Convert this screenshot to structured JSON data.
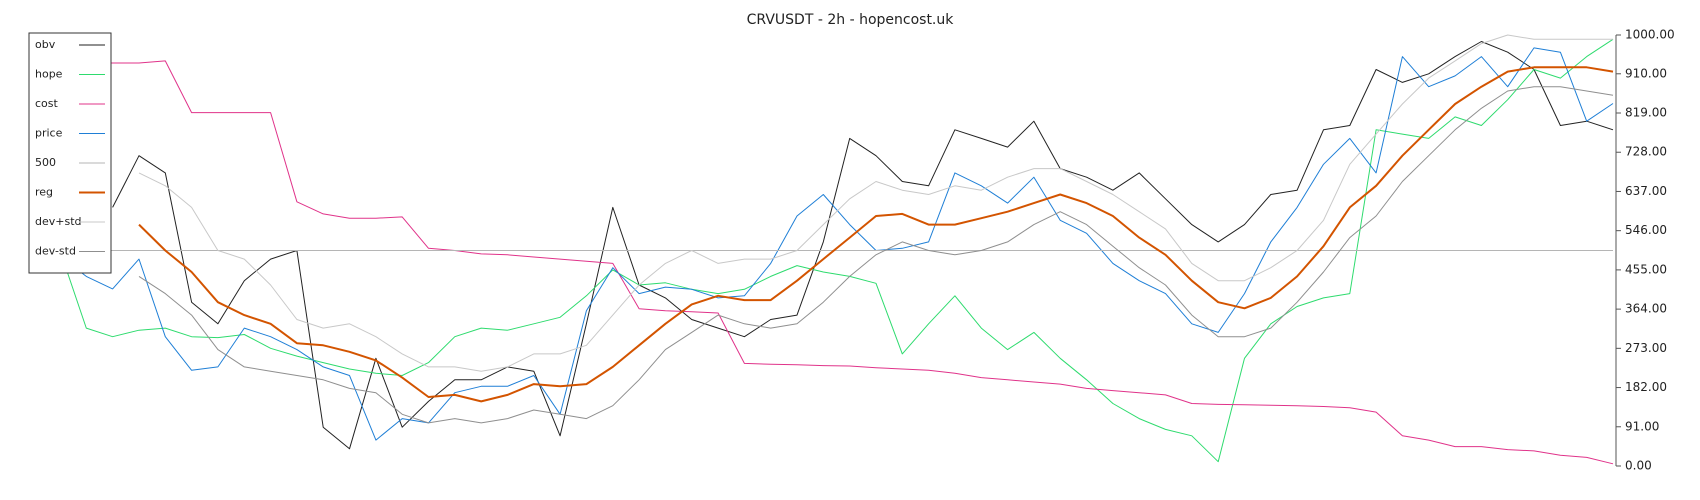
{
  "chart_data": {
    "type": "line",
    "title": "CRVUSDT - 2h - hopencost.uk",
    "ylim": [
      0,
      1000
    ],
    "yticks": [
      {
        "value": 0,
        "label": "0.00"
      },
      {
        "value": 91,
        "label": "91.00"
      },
      {
        "value": 182,
        "label": "182.00"
      },
      {
        "value": 273,
        "label": "273.00"
      },
      {
        "value": 364,
        "label": "364.00"
      },
      {
        "value": 455,
        "label": "455.00"
      },
      {
        "value": 546,
        "label": "546.00"
      },
      {
        "value": 637,
        "label": "637.00"
      },
      {
        "value": 728,
        "label": "728.00"
      },
      {
        "value": 819,
        "label": "819.00"
      },
      {
        "value": 910,
        "label": "910.00"
      },
      {
        "value": 1000,
        "label": "1000.00"
      }
    ],
    "y_axis_side": "right",
    "legend": "upper left",
    "series": [
      {
        "name": "obv",
        "color": "#222222",
        "width": 1,
        "values": [
          null,
          null,
          600,
          720,
          680,
          380,
          330,
          430,
          480,
          500,
          90,
          40,
          250,
          90,
          150,
          200,
          200,
          230,
          220,
          70,
          330,
          600,
          420,
          390,
          340,
          320,
          300,
          340,
          350,
          520,
          760,
          720,
          660,
          650,
          780,
          760,
          740,
          800,
          690,
          670,
          640,
          680,
          620,
          560,
          520,
          560,
          630,
          640,
          780,
          790,
          920,
          890,
          910,
          950,
          985,
          960,
          920,
          790,
          800,
          780
        ]
      },
      {
        "name": "hope",
        "color": "#2edb6e",
        "width": 1,
        "values": [
          500,
          320,
          300,
          315,
          320,
          300,
          298,
          305,
          273,
          255,
          240,
          225,
          215,
          210,
          240,
          300,
          320,
          315,
          330,
          345,
          395,
          455,
          420,
          425,
          410,
          400,
          410,
          440,
          465,
          450,
          440,
          424,
          260,
          330,
          395,
          320,
          270,
          310,
          250,
          200,
          145,
          110,
          85,
          70,
          10,
          250,
          330,
          370,
          390,
          400,
          780,
          770,
          760,
          810,
          790,
          850,
          920,
          900,
          950,
          990
        ]
      },
      {
        "name": "cost",
        "color": "#e0338a",
        "width": 1,
        "values": [
          935,
          935,
          935,
          935,
          940,
          820,
          820,
          820,
          820,
          613,
          585,
          575,
          575,
          578,
          505,
          500,
          492,
          490,
          485,
          480,
          475,
          470,
          365,
          360,
          358,
          355,
          238,
          236,
          235,
          233,
          232,
          228,
          225,
          222,
          215,
          205,
          200,
          195,
          190,
          180,
          175,
          170,
          165,
          145,
          143,
          142,
          141,
          140,
          138,
          135,
          125,
          70,
          60,
          45,
          45,
          38,
          35,
          25,
          20,
          5
        ]
      },
      {
        "name": "price",
        "color": "#1f7fd6",
        "width": 1,
        "values": [
          487,
          440,
          411,
          480,
          300,
          222,
          230,
          320,
          300,
          270,
          230,
          210,
          60,
          110,
          100,
          170,
          185,
          185,
          210,
          120,
          360,
          460,
          400,
          415,
          410,
          390,
          395,
          470,
          580,
          630,
          560,
          500,
          505,
          520,
          680,
          650,
          610,
          670,
          570,
          540,
          470,
          430,
          400,
          330,
          310,
          400,
          520,
          600,
          700,
          760,
          680,
          950,
          880,
          905,
          950,
          880,
          970,
          960,
          800,
          841
        ]
      },
      {
        "name": "500",
        "color": "#b5b5b5",
        "width": 1,
        "values": [
          500,
          500,
          500,
          500,
          500,
          500,
          500,
          500,
          500,
          500,
          500,
          500,
          500,
          500,
          500,
          500,
          500,
          500,
          500,
          500,
          500,
          500,
          500,
          500,
          500,
          500,
          500,
          500,
          500,
          500,
          500,
          500,
          500,
          500,
          500,
          500,
          500,
          500,
          500,
          500,
          500,
          500,
          500,
          500,
          500,
          500,
          500,
          500,
          500,
          500,
          500,
          500,
          500,
          500,
          500,
          500,
          500,
          500,
          500,
          500
        ]
      },
      {
        "name": "reg",
        "color": "#d35400",
        "width": 2,
        "values": [
          null,
          null,
          null,
          560,
          500,
          450,
          380,
          350,
          330,
          285,
          280,
          265,
          245,
          205,
          160,
          165,
          150,
          165,
          190,
          185,
          190,
          230,
          280,
          330,
          375,
          395,
          385,
          385,
          430,
          480,
          530,
          580,
          585,
          560,
          560,
          575,
          590,
          610,
          630,
          610,
          580,
          530,
          490,
          430,
          380,
          366,
          390,
          440,
          510,
          600,
          650,
          720,
          780,
          840,
          880,
          915,
          925,
          925,
          925,
          915
        ]
      },
      {
        "name": "dev+std",
        "color": "#c8c8c8",
        "width": 1,
        "values": [
          null,
          null,
          null,
          680,
          650,
          600,
          500,
          480,
          420,
          340,
          320,
          330,
          300,
          260,
          230,
          230,
          220,
          230,
          260,
          260,
          280,
          350,
          420,
          470,
          500,
          470,
          480,
          480,
          500,
          560,
          620,
          660,
          640,
          630,
          650,
          640,
          670,
          690,
          690,
          660,
          630,
          590,
          550,
          470,
          430,
          430,
          460,
          500,
          570,
          700,
          770,
          840,
          900,
          940,
          980,
          1000,
          990,
          990,
          990,
          990
        ]
      },
      {
        "name": "dev-std",
        "color": "#8f8f8f",
        "width": 1,
        "values": [
          null,
          null,
          null,
          440,
          400,
          350,
          270,
          230,
          220,
          210,
          200,
          180,
          170,
          120,
          100,
          110,
          100,
          110,
          130,
          120,
          110,
          140,
          200,
          270,
          310,
          350,
          330,
          320,
          330,
          380,
          440,
          490,
          520,
          500,
          490,
          500,
          520,
          560,
          590,
          560,
          510,
          460,
          420,
          350,
          300,
          300,
          320,
          380,
          450,
          530,
          580,
          660,
          720,
          780,
          830,
          870,
          880,
          880,
          870,
          860
        ]
      }
    ]
  }
}
